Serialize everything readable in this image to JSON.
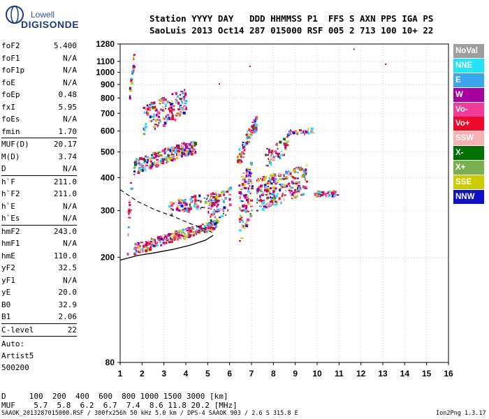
{
  "logo": {
    "line1": "Lowell",
    "line2": "DIGISONDE"
  },
  "header": {
    "line1": "Station YYYY DAY   DDD HHMMSS P1  FFS S AXN PPS IGA PS",
    "line2": "SaoLuis 2013 Oct14 287 015000 RSF 005 2 713 100 10+ 22"
  },
  "params": {
    "group1": [
      {
        "name": "foF2",
        "value": "5.400"
      },
      {
        "name": "foF1",
        "value": "N/A"
      },
      {
        "name": "foF1p",
        "value": "N/A"
      },
      {
        "name": "foE",
        "value": "N/A"
      },
      {
        "name": "foEp",
        "value": "0.48"
      },
      {
        "name": "fxI",
        "value": "5.95"
      },
      {
        "name": "foEs",
        "value": "N/A"
      },
      {
        "name": "fmin",
        "value": "1.70"
      }
    ],
    "group2": [
      {
        "name": "MUF(D)",
        "value": "20.17"
      },
      {
        "name": "M(D)",
        "value": "3.74"
      },
      {
        "name": "D",
        "value": "N/A"
      }
    ],
    "group3": [
      {
        "name": "h`F",
        "value": "211.0"
      },
      {
        "name": "h`F2",
        "value": "211.0"
      },
      {
        "name": "h`E",
        "value": "N/A"
      },
      {
        "name": "h`Es",
        "value": "N/A"
      }
    ],
    "group4": [
      {
        "name": "hmF2",
        "value": "243.0"
      },
      {
        "name": "hmF1",
        "value": "N/A"
      },
      {
        "name": "hmE",
        "value": "110.0"
      },
      {
        "name": "yF2",
        "value": "32.5"
      },
      {
        "name": "yF1",
        "value": "N/A"
      },
      {
        "name": "yE",
        "value": "20.0"
      },
      {
        "name": "B0",
        "value": "32.9"
      },
      {
        "name": "B1",
        "value": "2.06"
      }
    ],
    "group5": [
      {
        "name": "C-level",
        "value": "22"
      }
    ],
    "auto": [
      "Auto:",
      "Artist5",
      "500200"
    ]
  },
  "legend": [
    {
      "label": "NoVal",
      "color": "#9e9e9e"
    },
    {
      "label": "NNE",
      "color": "#22e4f4"
    },
    {
      "label": "E",
      "color": "#3aa6ee"
    },
    {
      "label": "W",
      "color": "#a6009e"
    },
    {
      "label": "Vo-",
      "color": "#f23c9a"
    },
    {
      "label": "Vo+",
      "color": "#f0082a"
    },
    {
      "label": "SSW",
      "color": "#f6b2b2"
    },
    {
      "label": "X-",
      "color": "#007000"
    },
    {
      "label": "X+",
      "color": "#78b050"
    },
    {
      "label": "SSE",
      "color": "#cccc00"
    },
    {
      "label": "NNW",
      "color": "#1010c8"
    }
  ],
  "bottom": {
    "d_line": "D     100  200  400  600  800 1000 1500 3000 [km]",
    "muf_line": "MUF    5.7  5.8  6.2  6.7  7.4  8.6 11.8 20.2 [MHz]"
  },
  "footer": {
    "left": "SAAOK_2013287015000.RSF / 300fx256h 50 kHz 5.0 km / DPS-4 SAAOK 903 / 2.6 S 315.8 E",
    "right": "Ion2Png 1.3.17"
  },
  "chart_data": {
    "type": "scatter",
    "title": "",
    "xlabel": "",
    "ylabel": "",
    "xlim": [
      1,
      16
    ],
    "ylim": [
      80,
      1280
    ],
    "y_scale": "log",
    "xticks": [
      1,
      2,
      3,
      4,
      5,
      6,
      7,
      8,
      9,
      10,
      11,
      12,
      13,
      14,
      15,
      16
    ],
    "yticks": [
      80,
      200,
      300,
      400,
      500,
      600,
      700,
      800,
      900,
      1000,
      1100,
      1280
    ],
    "grid": true,
    "clusters": [
      {
        "fmin": 1.6,
        "fmax": 5.4,
        "hstart": 212,
        "hend": 265,
        "count": 260,
        "spread": 10
      },
      {
        "fmin": 1.6,
        "fmax": 4.4,
        "hstart": 430,
        "hend": 520,
        "count": 230,
        "spread": 30
      },
      {
        "fmin": 2.0,
        "fmax": 4.0,
        "hstart": 620,
        "hend": 760,
        "count": 150,
        "spread": 90
      },
      {
        "fmin": 3.2,
        "fmax": 5.4,
        "hstart": 300,
        "hend": 330,
        "count": 110,
        "spread": 20
      },
      {
        "fmin": 5.0,
        "fmax": 6.0,
        "hstart": 280,
        "hend": 320,
        "count": 70,
        "spread": 40
      },
      {
        "fmin": 6.4,
        "fmax": 7.0,
        "hstart": 280,
        "hend": 340,
        "count": 110,
        "spread": 90
      },
      {
        "fmin": 6.3,
        "fmax": 7.2,
        "hstart": 440,
        "hend": 640,
        "count": 80,
        "spread": 40
      },
      {
        "fmin": 7.2,
        "fmax": 9.5,
        "hstart": 330,
        "hend": 380,
        "count": 260,
        "spread": 50
      },
      {
        "fmin": 7.6,
        "fmax": 8.6,
        "hstart": 460,
        "hend": 520,
        "count": 60,
        "spread": 40
      },
      {
        "fmin": 8.6,
        "fmax": 9.8,
        "hstart": 590,
        "hend": 600,
        "count": 30,
        "spread": 15
      },
      {
        "fmin": 9.8,
        "fmax": 10.9,
        "hstart": 345,
        "hend": 350,
        "count": 40,
        "spread": 8
      },
      {
        "fmin": 1.4,
        "fmax": 1.6,
        "hstart": 780,
        "hend": 1120,
        "count": 25,
        "spread": 60
      },
      {
        "fmin": 1.3,
        "fmax": 1.6,
        "hstart": 220,
        "hend": 480,
        "count": 15,
        "spread": 40
      }
    ],
    "isolated_points": [
      [
        11.65,
        1230
      ],
      [
        13.1,
        1080
      ],
      [
        5.5,
        910
      ],
      [
        6.9,
        1060
      ]
    ],
    "x_curve": [
      [
        1.0,
        195
      ],
      [
        1.8,
        203
      ],
      [
        2.6,
        208
      ],
      [
        3.4,
        214
      ],
      [
        4.2,
        222
      ],
      [
        4.9,
        232
      ],
      [
        5.25,
        242
      ]
    ],
    "o_curve_dashed": [
      [
        1.0,
        360
      ],
      [
        1.8,
        325
      ],
      [
        2.6,
        302
      ],
      [
        3.4,
        286
      ],
      [
        4.2,
        268
      ],
      [
        4.9,
        255
      ],
      [
        5.3,
        246
      ]
    ]
  }
}
